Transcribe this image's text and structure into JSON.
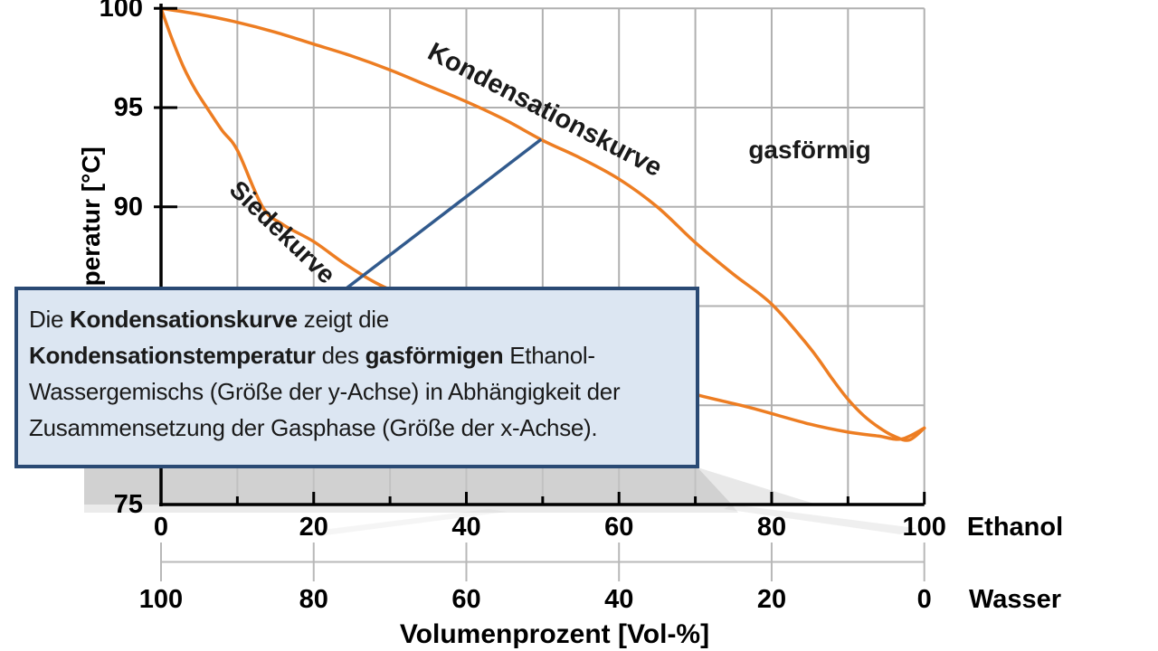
{
  "chart_data": {
    "type": "line",
    "title": "",
    "ylabel": "Temperatur [°C]",
    "xlabel": "Volumenprozent [Vol-%]",
    "x_axis_units": {
      "primary": "Ethanol",
      "secondary": "Wasser"
    },
    "xlim": [
      0,
      100
    ],
    "ylim": [
      75,
      100
    ],
    "grid": true,
    "x_major_tick_labels_ethanol": [
      0,
      20,
      40,
      60,
      80,
      100
    ],
    "x_major_tick_labels_wasser": [
      100,
      80,
      60,
      40,
      20,
      0
    ],
    "x_minor_tick_step": 10,
    "y_gridline_step": 5,
    "y_visible_tick_labels": [
      100,
      95,
      90,
      75
    ],
    "region_label": "gasförmig",
    "series": [
      {
        "name": "Siedekurve",
        "description": "boiling curve of liquid ethanol-water mixture",
        "points": [
          [
            0,
            100
          ],
          [
            1.5,
            98.4
          ],
          [
            3,
            97.0
          ],
          [
            4.5,
            95.9
          ],
          [
            6,
            95.0
          ],
          [
            8,
            93.85
          ],
          [
            10,
            92.85
          ],
          [
            13.3,
            90.0
          ],
          [
            16,
            89.1
          ],
          [
            20,
            88.25
          ],
          [
            24,
            87.15
          ],
          [
            28,
            86.2
          ],
          [
            33,
            85.3
          ],
          [
            40,
            84.1
          ],
          [
            47,
            83.2
          ],
          [
            55,
            82.25
          ],
          [
            62,
            81.45
          ],
          [
            70,
            80.55
          ],
          [
            77,
            79.9
          ],
          [
            85,
            79.05
          ],
          [
            90,
            78.65
          ],
          [
            94,
            78.45
          ],
          [
            97,
            78.3
          ],
          [
            100,
            78.85
          ]
        ]
      },
      {
        "name": "Kondensationskurve",
        "description": "condensation curve of gaseous ethanol-water mixture",
        "points": [
          [
            0,
            100
          ],
          [
            5,
            99.7
          ],
          [
            10,
            99.3
          ],
          [
            15,
            98.8
          ],
          [
            20,
            98.2
          ],
          [
            25,
            97.6
          ],
          [
            30,
            96.9
          ],
          [
            35,
            96.1
          ],
          [
            40,
            95.3
          ],
          [
            45,
            94.4
          ],
          [
            50,
            93.35
          ],
          [
            55,
            92.45
          ],
          [
            60,
            91.4
          ],
          [
            65,
            90.0
          ],
          [
            70,
            88.2
          ],
          [
            75,
            86.6
          ],
          [
            80,
            85.1
          ],
          [
            85,
            82.9
          ],
          [
            88,
            81.3
          ],
          [
            90,
            80.3
          ],
          [
            92,
            79.5
          ],
          [
            94,
            78.9
          ],
          [
            96,
            78.45
          ],
          [
            98,
            78.25
          ],
          [
            100,
            78.85
          ]
        ]
      }
    ],
    "tie_line": {
      "from": [
        24.3,
        85.9
      ],
      "to": [
        49.8,
        93.4
      ]
    }
  },
  "callout": {
    "lines": [
      [
        {
          "text": "Die ",
          "bold": false
        },
        {
          "text": "Kondensationskurve",
          "bold": true
        },
        {
          "text": " zeigt die",
          "bold": false
        }
      ],
      [
        {
          "text": "Kondensationstemperatur",
          "bold": true
        },
        {
          "text": " des ",
          "bold": false
        },
        {
          "text": "gasförmigen",
          "bold": true
        },
        {
          "text": " Ethanol-",
          "bold": false
        }
      ],
      [
        {
          "text": "Wassergemischs (Größe der y-Achse) in Abhängigkeit der",
          "bold": false
        }
      ],
      [
        {
          "text": "Zusammensetzung der Gasphase (Größe der x-Achse).",
          "bold": false
        }
      ]
    ]
  },
  "colors": {
    "curve": "#ed7d22",
    "tie_line": "#315a8d",
    "grid": "#b0b0b0",
    "axis": "#000000",
    "secondary_axis": "#b8b8b8",
    "callout_bg": "#dce6f2",
    "callout_border": "#2a4a74",
    "callout_text": "#1a1a1a",
    "shadow": "#c6c6c6"
  }
}
